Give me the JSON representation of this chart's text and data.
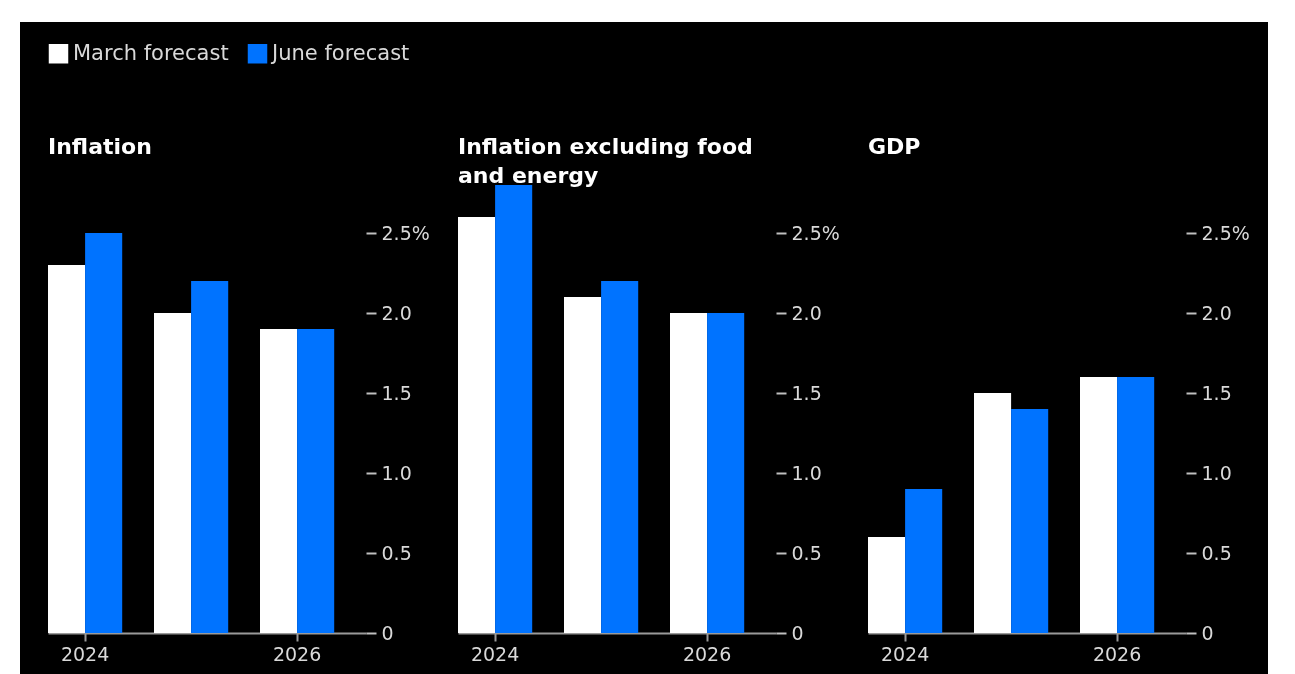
{
  "chart_data": [
    {
      "type": "bar",
      "title": "Inflation",
      "categories": [
        "2024",
        null,
        "2026"
      ],
      "series": [
        {
          "name": "March forecast",
          "color": "#ffffff",
          "values": [
            2.3,
            2.0,
            1.9
          ]
        },
        {
          "name": "June forecast",
          "color": "#0073ff",
          "values": [
            2.5,
            2.2,
            1.9
          ]
        }
      ],
      "yticks": [
        {
          "value": 0,
          "label": "0"
        },
        {
          "value": 0.5,
          "label": "0.5"
        },
        {
          "value": 1,
          "label": "1.0"
        },
        {
          "value": 1.5,
          "label": "1.5"
        },
        {
          "value": 2,
          "label": "2.0"
        },
        {
          "value": 2.5,
          "label": "2.5%"
        }
      ],
      "ylim": [
        0,
        2.5
      ],
      "legend": "top"
    },
    {
      "type": "bar",
      "title": "Inflation excluding food and energy",
      "categories": [
        "2024",
        null,
        "2026"
      ],
      "series": [
        {
          "color": "#ffffff",
          "values": [
            2.6,
            2.1,
            2.0
          ]
        },
        {
          "color": "#0073ff",
          "values": [
            2.8,
            2.2,
            2.0
          ]
        }
      ],
      "ylim": [
        0,
        2.8
      ],
      "yticks": [
        {
          "value": 0,
          "label": "0"
        },
        {
          "value": 0.5,
          "label": "0.5"
        },
        {
          "value": 1,
          "label": "1.0"
        },
        {
          "value": 1.5,
          "label": "1.5"
        },
        {
          "value": 2,
          "label": "2.0"
        },
        {
          "value": 2.5,
          "label": "2.5%"
        }
      ]
    },
    {
      "type": "bar",
      "title": "GDP",
      "categories": [
        "2024",
        null,
        "2026"
      ],
      "series": [
        {
          "color": "#ffffff",
          "values": [
            0.6,
            1.5,
            1.6
          ]
        },
        {
          "color": "#0073ff",
          "values": [
            0.9,
            1.4,
            1.6
          ]
        }
      ],
      "ylim": [
        0,
        2.5
      ],
      "yticks": [
        {
          "value": 0,
          "label": "0"
        },
        {
          "value": 0.5,
          "label": "0.5"
        },
        {
          "value": 1,
          "label": "1.0"
        },
        {
          "value": 1.5,
          "label": "1.5"
        },
        {
          "value": 2,
          "label": "2.0"
        },
        {
          "value": 2.5,
          "label": "2.5%"
        }
      ]
    }
  ]
}
